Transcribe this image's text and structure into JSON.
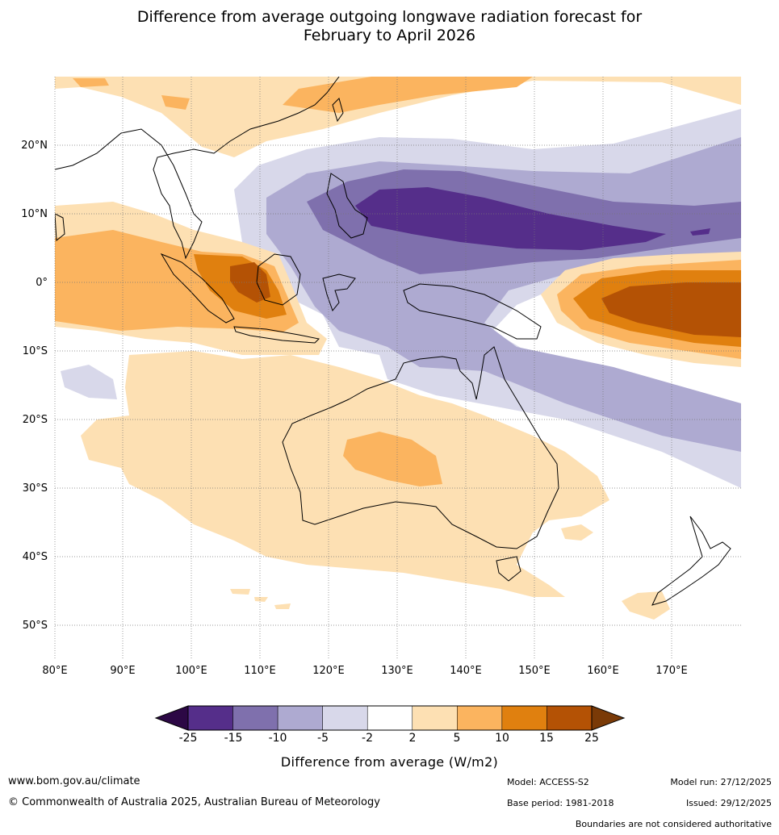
{
  "title": {
    "line1": "Difference from average outgoing longwave radiation forecast for",
    "line2": "February to April 2026"
  },
  "map": {
    "lon_labels": [
      "80°E",
      "90°E",
      "100°E",
      "110°E",
      "120°E",
      "130°E",
      "140°E",
      "150°E",
      "160°E",
      "170°E"
    ],
    "lat_labels": [
      "20°N",
      "10°N",
      "0°",
      "10°S",
      "20°S",
      "30°S",
      "40°S",
      "50°S"
    ],
    "lon_range": [
      80,
      180
    ],
    "lat_range": [
      -55,
      30
    ]
  },
  "colorbar": {
    "ticks": [
      "-25",
      "-15",
      "-10",
      "-5",
      "-2",
      "2",
      "5",
      "10",
      "15",
      "25"
    ],
    "colors": [
      "#552e8a",
      "#7f70ad",
      "#aeaad1",
      "#d8d8ea",
      "#ffffff",
      "#fde0b3",
      "#fbb45f",
      "#e0800f",
      "#b45205"
    ],
    "under_color": "#2c0845",
    "over_color": "#7a3a07",
    "label": "Difference from average (W/m2)"
  },
  "footer": {
    "website": "www.bom.gov.au/climate",
    "copyright": "© Commonwealth of Australia 2025, Australian Bureau of Meteorology",
    "model": "Model: ACCESS-S2",
    "base_period": "Base period: 1981-2018",
    "model_run": "Model run: 27/12/2025",
    "issued": "Issued: 29/12/2025",
    "disclaimer": "Boundaries are not considered authoritative"
  }
}
